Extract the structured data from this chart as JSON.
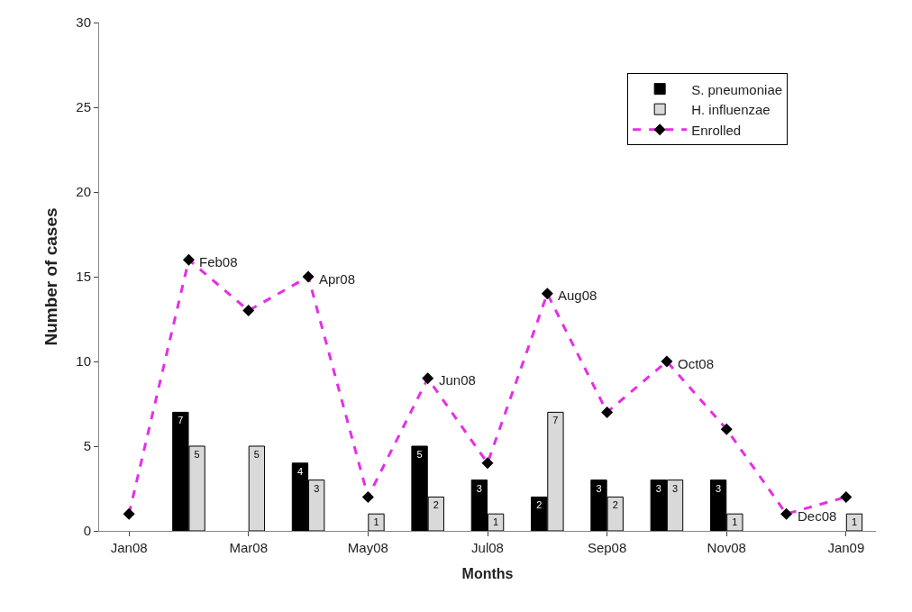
{
  "chart_data": {
    "type": "bar",
    "xlabel": "Months",
    "ylabel": "Number of cases",
    "categories": [
      "Jan08",
      null,
      "Mar08",
      null,
      "May08",
      null,
      "Jul08",
      null,
      "Sep08",
      null,
      "Nov08",
      null,
      "Jan09"
    ],
    "series": [
      {
        "name": "S. pneumoniae",
        "color": "#000000",
        "values": [
          null,
          7,
          null,
          4,
          null,
          5,
          3,
          2,
          3,
          3,
          3,
          null,
          null
        ],
        "value_labels": [
          null,
          "7",
          null,
          "4",
          null,
          "5",
          "3",
          "2",
          "3",
          "3",
          "3",
          null,
          null
        ]
      },
      {
        "name": "H. influenzae",
        "color": "#d9d9d9",
        "values": [
          null,
          5,
          5,
          3,
          1,
          2,
          1,
          7,
          2,
          3,
          1,
          null,
          1
        ],
        "value_labels": [
          null,
          "5",
          "5",
          "3",
          "1",
          "2",
          "1",
          "7",
          "2",
          "3",
          "1",
          null,
          "1"
        ]
      },
      {
        "name": "Enrolled",
        "type": "line",
        "color": "#e62ee6",
        "marker": "diamond",
        "line_style": "dashed",
        "values": [
          1,
          16,
          13,
          15,
          2,
          9,
          4,
          14,
          7,
          10,
          6,
          1,
          2
        ]
      }
    ],
    "annotations": [
      "Feb08",
      "Apr08",
      "Jun08",
      "Aug08",
      "Oct08",
      "Dec08"
    ],
    "ylim": [
      0,
      30
    ],
    "yticks": [
      0,
      5,
      10,
      15,
      20,
      25,
      30
    ],
    "legend": "top right"
  }
}
